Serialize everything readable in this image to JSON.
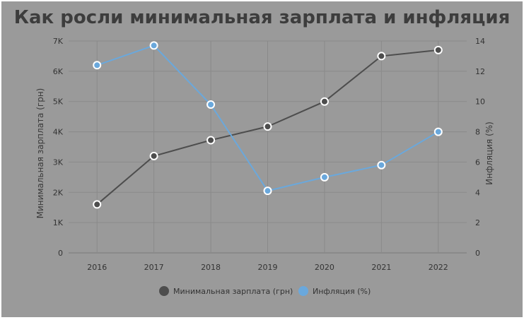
{
  "chart_data": {
    "type": "line",
    "title": "Как росли минимальная зарплата и инфляция",
    "x": [
      "2016",
      "2017",
      "2018",
      "2019",
      "2020",
      "2021",
      "2022"
    ],
    "series": [
      {
        "name": "Минимальная зарплата (грн)",
        "axis": "left",
        "color": "#4d4d4d",
        "values": [
          1600,
          3200,
          3723,
          4173,
          5000,
          6500,
          6700
        ]
      },
      {
        "name": "Инфляция (%)",
        "axis": "right",
        "color": "#6aa8dc",
        "values": [
          12.4,
          13.7,
          9.8,
          4.1,
          5.0,
          5.8,
          8.0
        ]
      }
    ],
    "ylabel_left": "Минимальная зарплата (грн)",
    "ylabel_right": "Инфляция (%)",
    "ylim_left": [
      0,
      7000
    ],
    "ylim_right": [
      0,
      14
    ],
    "yticks_left": [
      "0",
      "1K",
      "2K",
      "3K",
      "4K",
      "5K",
      "6K",
      "7K"
    ],
    "yticks_right": [
      "0",
      "2",
      "4",
      "6",
      "8",
      "10",
      "12",
      "14"
    ],
    "grid": true,
    "legend_position": "bottom"
  }
}
